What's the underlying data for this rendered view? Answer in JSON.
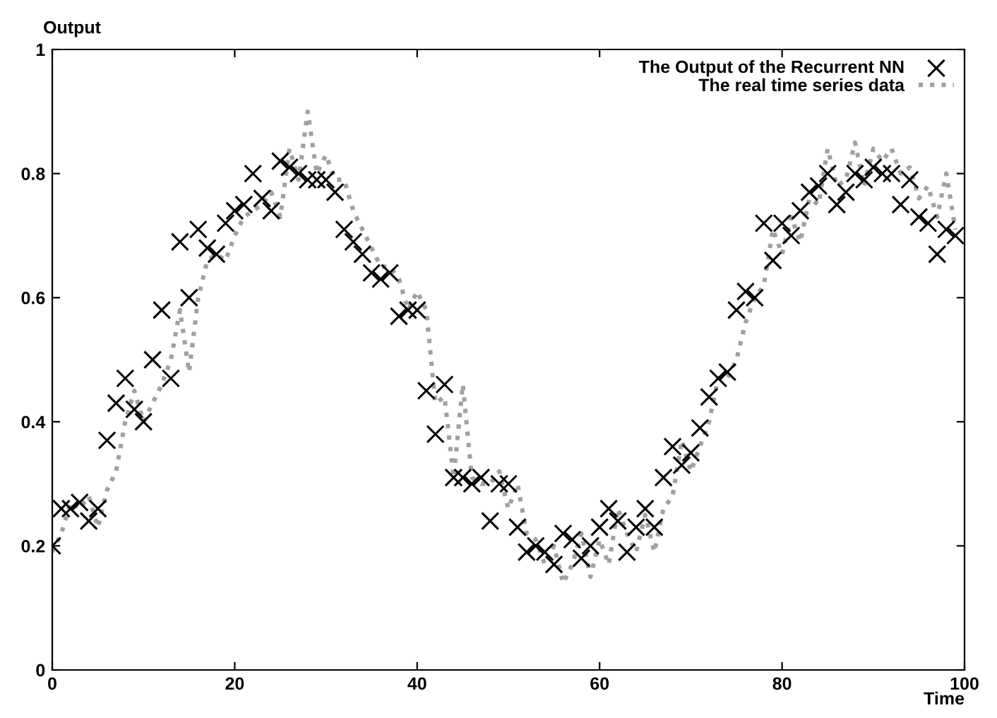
{
  "chart_data": {
    "type": "scatter",
    "xlabel": "Time",
    "ylabel": "Output",
    "xlim": [
      0,
      100
    ],
    "ylim": [
      0,
      1
    ],
    "xticks": [
      0,
      20,
      40,
      60,
      80,
      100
    ],
    "yticks": [
      0,
      {
        "value": 0.2,
        "label": "0.2"
      },
      {
        "value": 0.4,
        "label": "0.4"
      },
      {
        "value": 0.6,
        "label": "0.6"
      },
      {
        "value": 0.8,
        "label": "0.8"
      },
      1
    ],
    "grid": false,
    "legend": "top right",
    "series": [
      {
        "name": "The Output of the Recurrent NN",
        "marker": "cross",
        "color": "#000000",
        "x": [
          0,
          1,
          2,
          3,
          4,
          5,
          6,
          7,
          8,
          9,
          10,
          11,
          12,
          13,
          14,
          15,
          16,
          17,
          18,
          19,
          20,
          21,
          22,
          23,
          24,
          25,
          26,
          27,
          28,
          29,
          30,
          31,
          32,
          33,
          34,
          35,
          36,
          37,
          38,
          39,
          40,
          41,
          42,
          43,
          44,
          45,
          46,
          47,
          48,
          49,
          50,
          51,
          52,
          53,
          54,
          55,
          56,
          57,
          58,
          59,
          60,
          61,
          62,
          63,
          64,
          65,
          66,
          67,
          68,
          69,
          70,
          71,
          72,
          73,
          74,
          75,
          76,
          77,
          78,
          79,
          80,
          81,
          82,
          83,
          84,
          85,
          86,
          87,
          88,
          89,
          90,
          91,
          92,
          93,
          94,
          95,
          96,
          97,
          98,
          99
        ],
        "values": [
          0.2,
          0.26,
          0.26,
          0.27,
          0.24,
          0.26,
          0.37,
          0.43,
          0.47,
          0.42,
          0.4,
          0.5,
          0.58,
          0.47,
          0.69,
          0.6,
          0.71,
          0.68,
          0.67,
          0.72,
          0.74,
          0.75,
          0.8,
          0.76,
          0.74,
          0.82,
          0.81,
          0.8,
          0.79,
          0.79,
          0.79,
          0.77,
          0.71,
          0.69,
          0.67,
          0.64,
          0.63,
          0.64,
          0.57,
          0.58,
          0.58,
          0.45,
          0.38,
          0.46,
          0.31,
          0.31,
          0.3,
          0.31,
          0.24,
          0.3,
          0.3,
          0.23,
          0.19,
          0.2,
          0.19,
          0.17,
          0.22,
          0.21,
          0.18,
          0.2,
          0.23,
          0.26,
          0.24,
          0.19,
          0.23,
          0.26,
          0.23,
          0.31,
          0.36,
          0.33,
          0.35,
          0.39,
          0.44,
          0.47,
          0.48,
          0.58,
          0.61,
          0.6,
          0.72,
          0.66,
          0.72,
          0.7,
          0.74,
          0.77,
          0.78,
          0.8,
          0.75,
          0.77,
          0.8,
          0.79,
          0.81,
          0.8,
          0.8,
          0.75,
          0.79,
          0.73,
          0.72,
          0.67,
          0.71,
          0.7
        ]
      },
      {
        "name": "The real time series data",
        "type": "line",
        "line_style": "dotted",
        "color": "#a0a0a0",
        "x": [
          0,
          1,
          2,
          3,
          4,
          5,
          6,
          7,
          8,
          9,
          10,
          11,
          12,
          13,
          14,
          15,
          16,
          17,
          18,
          19,
          20,
          21,
          22,
          23,
          24,
          25,
          26,
          27,
          28,
          29,
          30,
          31,
          32,
          33,
          34,
          35,
          36,
          37,
          38,
          39,
          40,
          41,
          42,
          43,
          44,
          45,
          46,
          47,
          48,
          49,
          50,
          51,
          52,
          53,
          54,
          55,
          56,
          57,
          58,
          59,
          60,
          61,
          62,
          63,
          64,
          65,
          66,
          67,
          68,
          69,
          70,
          71,
          72,
          73,
          74,
          75,
          76,
          77,
          78,
          79,
          80,
          81,
          82,
          83,
          84,
          85,
          86,
          87,
          88,
          89,
          90,
          91,
          92,
          93,
          94,
          95,
          96,
          97,
          98,
          99
        ],
        "values": [
          0.19,
          0.22,
          0.27,
          0.26,
          0.28,
          0.23,
          0.29,
          0.32,
          0.4,
          0.45,
          0.4,
          0.43,
          0.46,
          0.5,
          0.58,
          0.48,
          0.6,
          0.66,
          0.67,
          0.66,
          0.7,
          0.73,
          0.74,
          0.75,
          0.77,
          0.73,
          0.84,
          0.79,
          0.9,
          0.8,
          0.83,
          0.79,
          0.79,
          0.74,
          0.71,
          0.68,
          0.65,
          0.65,
          0.63,
          0.58,
          0.61,
          0.58,
          0.43,
          0.44,
          0.31,
          0.46,
          0.31,
          0.3,
          0.3,
          0.32,
          0.26,
          0.3,
          0.22,
          0.21,
          0.17,
          0.2,
          0.14,
          0.17,
          0.22,
          0.15,
          0.21,
          0.17,
          0.26,
          0.22,
          0.19,
          0.25,
          0.19,
          0.26,
          0.28,
          0.37,
          0.32,
          0.36,
          0.4,
          0.47,
          0.47,
          0.5,
          0.56,
          0.6,
          0.62,
          0.71,
          0.67,
          0.73,
          0.69,
          0.76,
          0.75,
          0.84,
          0.78,
          0.79,
          0.85,
          0.78,
          0.84,
          0.82,
          0.84,
          0.8,
          0.81,
          0.76,
          0.78,
          0.73,
          0.8,
          0.71
        ]
      }
    ]
  }
}
